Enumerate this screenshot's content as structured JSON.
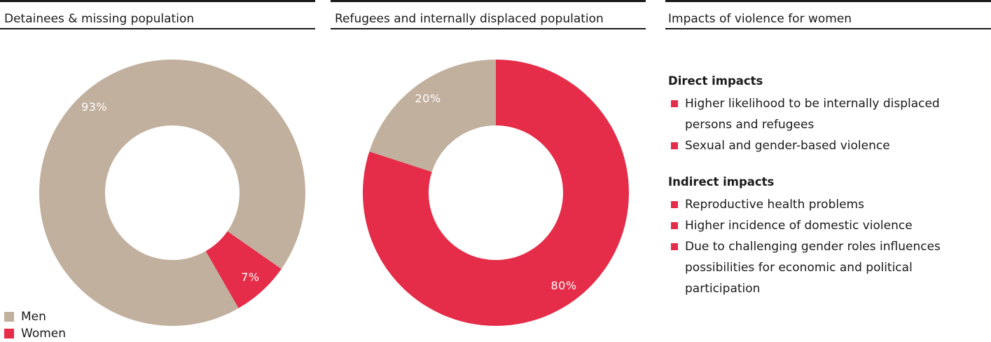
{
  "colors": {
    "men": "#c2b09e",
    "women": "#e52c48"
  },
  "legend": [
    {
      "label": "Men",
      "color": "#c2b09e"
    },
    {
      "label": "Women",
      "color": "#e52c48"
    }
  ],
  "panels": {
    "detainees": {
      "title": "Detainees & missing population"
    },
    "refugees": {
      "title": "Refugees and internally displaced population"
    },
    "impacts": {
      "title": "Impacts of violence for women",
      "direct_heading": "Direct impacts",
      "direct_items": [
        "Higher likelihood to be internally displaced persons and refugees",
        "Sexual and gender-based violence"
      ],
      "indirect_heading": "Indirect impacts",
      "indirect_items": [
        "Reproductive health problems",
        "Higher incidence of domestic violence",
        "Due to challenging gender roles influences possibilities for economic and political participation"
      ]
    }
  },
  "chart_data": [
    {
      "type": "pie",
      "title": "Detainees & missing population",
      "categories": [
        "Men",
        "Women"
      ],
      "values": [
        93,
        7
      ],
      "labels": [
        "93%",
        "7%"
      ],
      "colors": [
        "#c2b09e",
        "#e52c48"
      ],
      "donut": true,
      "legend_position": "bottom-left"
    },
    {
      "type": "pie",
      "title": "Refugees and internally displaced population",
      "categories": [
        "Men",
        "Women"
      ],
      "values": [
        20,
        80
      ],
      "labels": [
        "20%",
        "80%"
      ],
      "colors": [
        "#c2b09e",
        "#e52c48"
      ],
      "donut": true
    }
  ]
}
